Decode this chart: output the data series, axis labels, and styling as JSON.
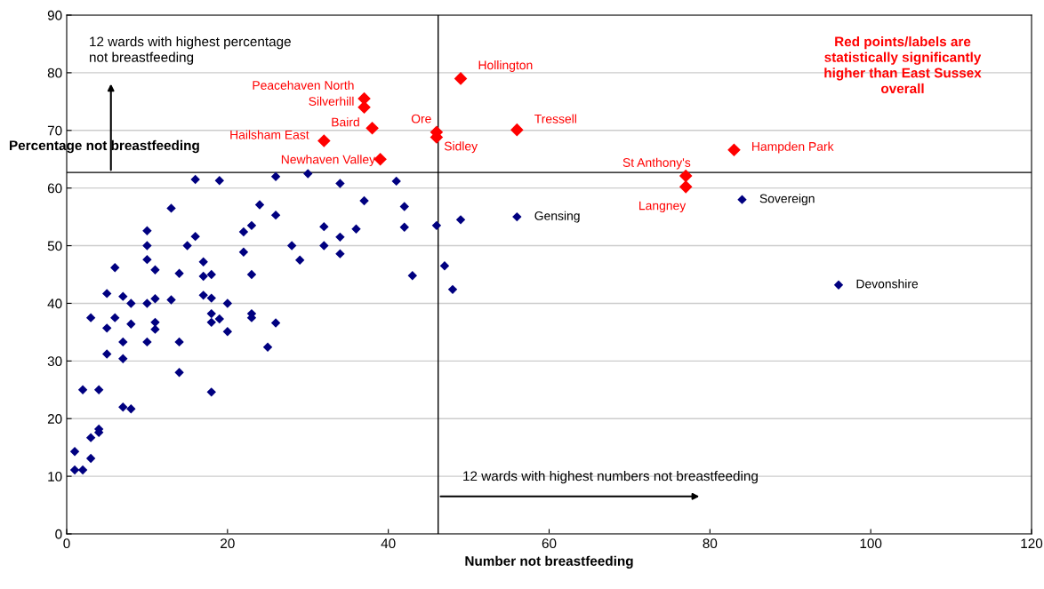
{
  "chart_data": {
    "type": "scatter",
    "xlabel": "Number not breastfeeding",
    "ylabel": "Percentage not breastfeeding",
    "xlim": [
      0,
      120
    ],
    "xticks": [
      0,
      20,
      40,
      60,
      80,
      100,
      120
    ],
    "ylim": [
      0,
      90
    ],
    "yticks": [
      0,
      10,
      20,
      30,
      40,
      50,
      60,
      70,
      80,
      90
    ],
    "grid": "y",
    "marker": "diamond",
    "series": [
      {
        "color": "#000080",
        "x": [
          1,
          2,
          1,
          3,
          3,
          4,
          4,
          2,
          4,
          7,
          8,
          3,
          5,
          5,
          5,
          6,
          6,
          7,
          7,
          7,
          8,
          8,
          10,
          10,
          10,
          10,
          10,
          11,
          11,
          11,
          11,
          13,
          13,
          14,
          14,
          14,
          15,
          16,
          16,
          17,
          17,
          17,
          18,
          18,
          18,
          18,
          18,
          19,
          19,
          20,
          20,
          22,
          22,
          23,
          23,
          23,
          23,
          24,
          25,
          26,
          26,
          26,
          28,
          29,
          30,
          32,
          32,
          34,
          34,
          34,
          36,
          37,
          41,
          42,
          42,
          43,
          46,
          47,
          48,
          49,
          56,
          84,
          96
        ],
        "values": [
          11.1,
          11.1,
          14.3,
          13.1,
          16.7,
          17.6,
          18.2,
          25,
          25,
          22,
          21.7,
          37.5,
          31.2,
          35.7,
          41.7,
          37.5,
          46.2,
          30.4,
          33.3,
          41.2,
          36.4,
          40,
          33.3,
          40,
          47.6,
          50,
          52.6,
          35.5,
          36.7,
          40.8,
          45.8,
          40.6,
          56.5,
          28,
          33.3,
          45.2,
          50,
          51.6,
          61.5,
          41.4,
          44.7,
          47.2,
          24.6,
          36.7,
          38.2,
          40.9,
          45,
          37.3,
          61.3,
          35.1,
          40,
          48.9,
          52.4,
          37.5,
          38.2,
          45,
          53.5,
          57.1,
          32.4,
          36.6,
          55.3,
          62,
          50,
          47.5,
          62.5,
          50,
          53.3,
          48.6,
          51.5,
          60.8,
          52.9,
          57.8,
          61.2,
          53.2,
          56.8,
          44.8,
          53.5,
          46.5,
          42.4,
          54.5,
          55,
          58,
          43.2
        ]
      },
      {
        "color": "#ff0000",
        "x": [
          37,
          37,
          49,
          38,
          46,
          46,
          32,
          39,
          56,
          83,
          77,
          77
        ],
        "values": [
          75.5,
          74,
          79,
          70.4,
          69.7,
          68.8,
          68.2,
          65,
          70.1,
          66.6,
          62.1,
          60.2
        ]
      }
    ],
    "ref_lines": [
      {
        "axis": "x",
        "value": 46.2,
        "color": "#000000"
      },
      {
        "axis": "y",
        "value": 62.7,
        "color": "#000000"
      }
    ],
    "annotations": [
      "12 wards with highest percentage\nnot breastfeeding",
      "12 wards with highest numbers not breastfeeding",
      "Red points/labels are\nstatistically significantly\nhigher than East Sussex\noverall",
      {
        "text": "Peacehaven North",
        "x": 37,
        "y": 75.5
      },
      {
        "text": "Silverhill",
        "x": 37,
        "y": 74
      },
      {
        "text": "Hollington",
        "x": 49,
        "y": 79
      },
      {
        "text": "Baird",
        "x": 38,
        "y": 70.4
      },
      {
        "text": "Ore",
        "x": 46,
        "y": 69.7
      },
      {
        "text": "Sidley",
        "x": 46,
        "y": 68.8
      },
      {
        "text": "Hailsham East",
        "x": 32,
        "y": 68.2
      },
      {
        "text": "Newhaven Valley",
        "x": 39,
        "y": 65
      },
      {
        "text": "Tressell",
        "x": 56,
        "y": 70.1
      },
      {
        "text": "Hampden Park",
        "x": 83,
        "y": 66.6
      },
      {
        "text": "St Anthony's",
        "x": 77,
        "y": 62.1
      },
      {
        "text": "Langney",
        "x": 77,
        "y": 60.2
      },
      {
        "text": "Gensing",
        "x": 56,
        "y": 55
      },
      {
        "text": "Sovereign",
        "x": 84,
        "y": 58
      },
      {
        "text": "Devonshire",
        "x": 96,
        "y": 43.2
      }
    ]
  }
}
